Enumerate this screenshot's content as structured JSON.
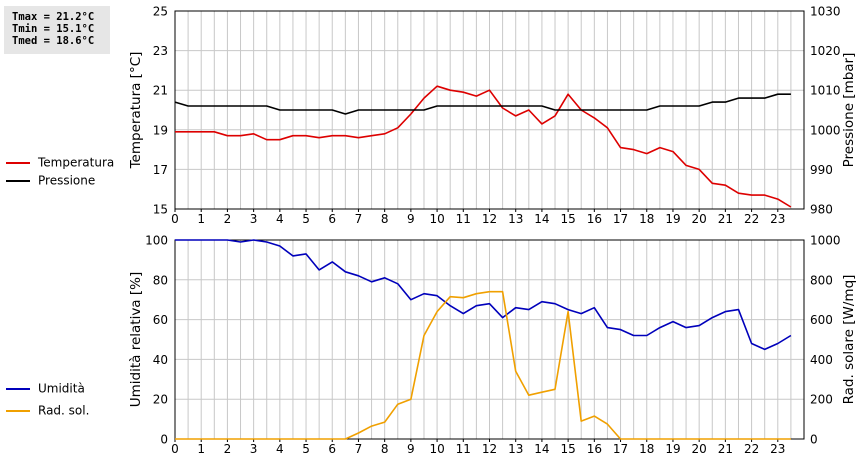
{
  "stats": {
    "tmax": "Tmax = 21.2°C",
    "tmin": "Tmin = 15.1°C",
    "tmed": "Tmed = 18.6°C"
  },
  "legend_top": [
    {
      "label": "Temperatura",
      "color": "#dd0000"
    },
    {
      "label": "Pressione",
      "color": "#000000"
    }
  ],
  "legend_bottom": [
    {
      "label": "Umidità",
      "color": "#0000bb"
    },
    {
      "label": "Rad. sol.",
      "color": "#f0a000"
    }
  ],
  "chart_data": [
    {
      "type": "line",
      "xlabel": "",
      "ylabel": "Temperatura [°C]",
      "y2label": "Pressione [mbar]",
      "xlim": [
        0,
        24
      ],
      "xticks": [
        "0",
        "1",
        "2",
        "3",
        "4",
        "5",
        "6",
        "7",
        "8",
        "9",
        "10",
        "11",
        "12",
        "13",
        "14",
        "15",
        "16",
        "17",
        "18",
        "19",
        "20",
        "21",
        "22",
        "23"
      ],
      "ylim": [
        15,
        25
      ],
      "yticks": [
        "15",
        "17",
        "19",
        "21",
        "23",
        "25"
      ],
      "y2lim": [
        980,
        1030
      ],
      "y2ticks": [
        "980",
        "990",
        "1000",
        "1010",
        "1020",
        "1030"
      ],
      "grid": true,
      "series": [
        {
          "name": "Temperatura",
          "axis": "left",
          "color": "#dd0000",
          "x": [
            0,
            0.5,
            1,
            1.5,
            2,
            2.5,
            3,
            3.5,
            4,
            4.5,
            5,
            5.5,
            6,
            6.5,
            7,
            7.5,
            8,
            8.5,
            9,
            9.5,
            10,
            10.5,
            11,
            11.5,
            12,
            12.5,
            13,
            13.5,
            14,
            14.5,
            15,
            15.5,
            16,
            16.5,
            17,
            17.5,
            18,
            18.5,
            19,
            19.5,
            20,
            20.5,
            21,
            21.5,
            22,
            22.5,
            23,
            23.5
          ],
          "values": [
            18.9,
            18.9,
            18.9,
            18.9,
            18.7,
            18.7,
            18.8,
            18.5,
            18.5,
            18.7,
            18.7,
            18.6,
            18.7,
            18.7,
            18.6,
            18.7,
            18.8,
            19.1,
            19.8,
            20.6,
            21.2,
            21.0,
            20.9,
            20.7,
            21.0,
            20.1,
            19.7,
            20.0,
            19.3,
            19.7,
            20.8,
            20.0,
            19.6,
            19.1,
            18.1,
            18.0,
            17.8,
            18.1,
            17.9,
            17.2,
            17.0,
            16.3,
            16.2,
            15.8,
            15.7,
            15.7,
            15.5,
            15.1
          ]
        },
        {
          "name": "Pressione",
          "axis": "right",
          "color": "#000000",
          "x": [
            0,
            0.5,
            1,
            1.5,
            2,
            2.5,
            3,
            3.5,
            4,
            4.5,
            5,
            5.5,
            6,
            6.5,
            7,
            7.5,
            8,
            8.5,
            9,
            9.5,
            10,
            10.5,
            11,
            11.5,
            12,
            12.5,
            13,
            13.5,
            14,
            14.5,
            15,
            15.5,
            16,
            16.5,
            17,
            17.5,
            18,
            18.5,
            19,
            19.5,
            20,
            20.5,
            21,
            21.5,
            22,
            22.5,
            23,
            23.5
          ],
          "values": [
            1007,
            1006,
            1006,
            1006,
            1006,
            1006,
            1006,
            1006,
            1005,
            1005,
            1005,
            1005,
            1005,
            1004,
            1005,
            1005,
            1005,
            1005,
            1005,
            1005,
            1006,
            1006,
            1006,
            1006,
            1006,
            1006,
            1006,
            1006,
            1006,
            1005,
            1005,
            1005,
            1005,
            1005,
            1005,
            1005,
            1005,
            1006,
            1006,
            1006,
            1006,
            1007,
            1007,
            1008,
            1008,
            1008,
            1009,
            1009
          ]
        }
      ]
    },
    {
      "type": "line",
      "xlabel": "",
      "ylabel": "Umidità relativa [%]",
      "y2label": "Rad. solare [W/mq]",
      "xlim": [
        0,
        24
      ],
      "xticks": [
        "0",
        "1",
        "2",
        "3",
        "4",
        "5",
        "6",
        "7",
        "8",
        "9",
        "10",
        "11",
        "12",
        "13",
        "14",
        "15",
        "16",
        "17",
        "18",
        "19",
        "20",
        "21",
        "22",
        "23"
      ],
      "ylim": [
        0,
        100
      ],
      "yticks": [
        "0",
        "20",
        "40",
        "60",
        "80",
        "100"
      ],
      "y2lim": [
        0,
        1000
      ],
      "y2ticks": [
        "0",
        "200",
        "400",
        "600",
        "800",
        "1000"
      ],
      "grid": true,
      "series": [
        {
          "name": "Umidità",
          "axis": "left",
          "color": "#0000bb",
          "x": [
            0,
            0.5,
            1,
            1.5,
            2,
            2.5,
            3,
            3.5,
            4,
            4.5,
            5,
            5.5,
            6,
            6.5,
            7,
            7.5,
            8,
            8.5,
            9,
            9.5,
            10,
            10.5,
            11,
            11.5,
            12,
            12.5,
            13,
            13.5,
            14,
            14.5,
            15,
            15.5,
            16,
            16.5,
            17,
            17.5,
            18,
            18.5,
            19,
            19.5,
            20,
            20.5,
            21,
            21.5,
            22,
            22.5,
            23,
            23.5
          ],
          "values": [
            100,
            100,
            100,
            100,
            100,
            99,
            100,
            99,
            97,
            92,
            93,
            85,
            89,
            84,
            82,
            79,
            81,
            78,
            70,
            73,
            72,
            67,
            63,
            67,
            68,
            61,
            66,
            65,
            69,
            68,
            65,
            63,
            66,
            56,
            55,
            52,
            52,
            56,
            59,
            56,
            57,
            61,
            64,
            65,
            48,
            45,
            48,
            52
          ]
        },
        {
          "name": "Rad. sol.",
          "axis": "right",
          "color": "#f0a000",
          "x": [
            0,
            0.5,
            1,
            1.5,
            2,
            2.5,
            3,
            3.5,
            4,
            4.5,
            5,
            5.5,
            6,
            6.5,
            7,
            7.5,
            8,
            8.5,
            9,
            9.5,
            10,
            10.5,
            11,
            11.5,
            12,
            12.5,
            13,
            13.5,
            14,
            14.5,
            15,
            15.5,
            16,
            16.5,
            17,
            17.5,
            18,
            18.5,
            19,
            19.5,
            20,
            20.5,
            21,
            21.5,
            22,
            22.5,
            23,
            23.5
          ],
          "values": [
            0,
            0,
            0,
            0,
            0,
            0,
            0,
            0,
            0,
            0,
            0,
            0,
            0,
            0,
            30,
            65,
            85,
            175,
            200,
            520,
            640,
            715,
            710,
            730,
            740,
            740,
            340,
            220,
            235,
            250,
            640,
            90,
            115,
            75,
            0,
            0,
            0,
            0,
            0,
            0,
            0,
            0,
            0,
            0,
            0,
            0,
            0,
            0
          ]
        }
      ]
    }
  ]
}
